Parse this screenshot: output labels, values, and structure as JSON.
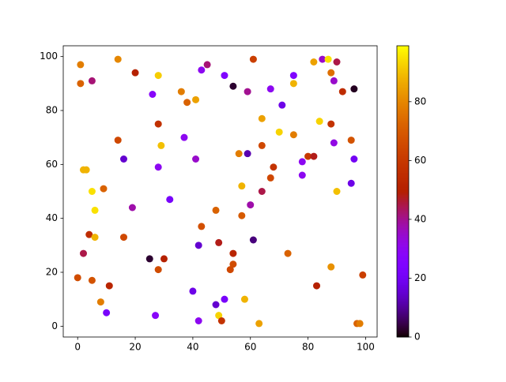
{
  "chart_data": {
    "type": "scatter",
    "colormap": "gnuplot",
    "x": [
      1,
      1,
      5,
      14,
      20,
      28,
      26,
      45,
      43,
      51,
      54,
      61,
      59,
      67,
      71,
      75,
      75,
      82,
      85,
      87,
      90,
      88,
      89,
      92,
      96,
      36,
      38,
      41,
      28,
      14,
      29,
      37,
      16,
      28,
      41,
      2,
      3,
      5,
      9,
      6,
      19,
      32,
      4,
      16,
      6,
      2,
      25,
      30,
      28,
      0,
      5,
      11,
      8,
      10,
      27,
      40,
      42,
      48,
      49,
      51,
      50,
      58,
      63,
      42,
      43,
      48,
      49,
      54,
      53,
      54,
      61,
      57,
      57,
      56,
      59,
      64,
      64,
      70,
      75,
      68,
      67,
      64,
      60,
      78,
      80,
      82,
      78,
      88,
      84,
      89,
      95,
      96,
      95,
      90,
      73,
      83,
      88,
      97,
      98,
      99
    ],
    "y": [
      97,
      90,
      91,
      99,
      94,
      93,
      86,
      97,
      95,
      93,
      89,
      99,
      87,
      88,
      82,
      93,
      90,
      98,
      99,
      99,
      98,
      94,
      91,
      87,
      88,
      87,
      83,
      84,
      75,
      69,
      67,
      70,
      62,
      59,
      62,
      58,
      58,
      50,
      51,
      43,
      44,
      47,
      34,
      33,
      33,
      27,
      25,
      25,
      21,
      18,
      17,
      15,
      9,
      5,
      4,
      13,
      2,
      8,
      4,
      10,
      2,
      10,
      1,
      30,
      37,
      43,
      31,
      27,
      21,
      23,
      32,
      41,
      52,
      64,
      64,
      67,
      77,
      72,
      71,
      59,
      55,
      50,
      45,
      61,
      63,
      63,
      56,
      75,
      76,
      68,
      69,
      62,
      53,
      50,
      27,
      15,
      22,
      1,
      1,
      19
    ],
    "c": [
      78,
      72,
      42,
      80,
      50,
      92,
      28,
      42,
      30,
      25,
      3,
      62,
      40,
      30,
      18,
      25,
      88,
      85,
      35,
      95,
      45,
      75,
      35,
      55,
      2,
      78,
      72,
      85,
      57,
      65,
      90,
      30,
      15,
      30,
      35,
      88,
      88,
      95,
      72,
      95,
      38,
      22,
      55,
      65,
      88,
      45,
      3,
      50,
      66,
      66,
      68,
      52,
      78,
      22,
      28,
      18,
      30,
      15,
      93,
      22,
      58,
      88,
      85,
      15,
      67,
      72,
      48,
      52,
      65,
      66,
      8,
      70,
      88,
      78,
      12,
      65,
      85,
      93,
      78,
      58,
      65,
      45,
      38,
      30,
      60,
      48,
      30,
      58,
      93,
      32,
      68,
      20,
      18,
      90,
      72,
      50,
      82,
      72,
      78,
      62
    ],
    "xlim": [
      -5,
      104
    ],
    "ylim": [
      -4,
      104
    ],
    "clim": [
      0,
      99
    ],
    "xticks": [
      0,
      20,
      40,
      60,
      80,
      100
    ],
    "yticks": [
      0,
      20,
      40,
      60,
      80,
      100
    ],
    "cticks": [
      0,
      20,
      40,
      60,
      80
    ]
  }
}
